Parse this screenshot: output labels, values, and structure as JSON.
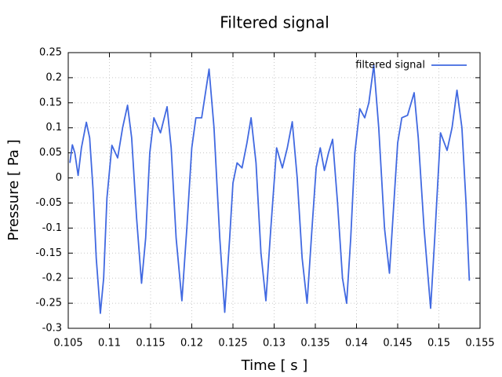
{
  "chart_data": {
    "type": "line",
    "title": "Filtered signal",
    "xlabel": "Time [ s ]",
    "ylabel": "Pressure [ Pa ]",
    "x": [
      0.1052,
      0.1055,
      0.1058,
      0.1062,
      0.1066,
      0.1072,
      0.1076,
      0.108,
      0.1084,
      0.1089,
      0.1093,
      0.1097,
      0.1103,
      0.111,
      0.1116,
      0.1122,
      0.1127,
      0.1133,
      0.1139,
      0.1144,
      0.1149,
      0.1154,
      0.1162,
      0.117,
      0.1175,
      0.1181,
      0.1188,
      0.1194,
      0.12,
      0.1205,
      0.1212,
      0.1221,
      0.1227,
      0.1234,
      0.124,
      0.1246,
      0.125,
      0.1255,
      0.1261,
      0.1267,
      0.1272,
      0.1278,
      0.1284,
      0.129,
      0.1296,
      0.1303,
      0.131,
      0.1316,
      0.1322,
      0.1328,
      0.1334,
      0.134,
      0.1346,
      0.1351,
      0.1356,
      0.1361,
      0.1366,
      0.1371,
      0.1377,
      0.1383,
      0.1388,
      0.1393,
      0.1398,
      0.1404,
      0.141,
      0.1415,
      0.1421,
      0.1427,
      0.1434,
      0.144,
      0.1445,
      0.145,
      0.1455,
      0.1462,
      0.147,
      0.1475,
      0.1482,
      0.149,
      0.1495,
      0.1502,
      0.151,
      0.1516,
      0.1522,
      0.1528,
      0.1533,
      0.1537
    ],
    "series": [
      {
        "name": "filtered signal",
        "color": "#4169e1",
        "values": [
          0.03,
          0.066,
          0.05,
          0.005,
          0.06,
          0.111,
          0.08,
          -0.02,
          -0.16,
          -0.27,
          -0.2,
          -0.04,
          0.065,
          0.04,
          0.1,
          0.145,
          0.08,
          -0.08,
          -0.21,
          -0.12,
          0.05,
          0.12,
          0.09,
          0.142,
          0.06,
          -0.12,
          -0.245,
          -0.1,
          0.06,
          0.12,
          0.12,
          0.217,
          0.1,
          -0.12,
          -0.268,
          -0.12,
          -0.01,
          0.03,
          0.02,
          0.07,
          0.12,
          0.03,
          -0.15,
          -0.245,
          -0.1,
          0.06,
          0.02,
          0.06,
          0.112,
          0.0,
          -0.16,
          -0.25,
          -0.1,
          0.02,
          0.06,
          0.015,
          0.05,
          0.077,
          -0.05,
          -0.2,
          -0.25,
          -0.12,
          0.05,
          0.138,
          0.12,
          0.15,
          0.225,
          0.1,
          -0.1,
          -0.19,
          -0.06,
          0.07,
          0.12,
          0.125,
          0.17,
          0.08,
          -0.1,
          -0.26,
          -0.12,
          0.09,
          0.055,
          0.1,
          0.175,
          0.1,
          -0.05,
          -0.205
        ]
      }
    ],
    "xlim": [
      0.105,
      0.155
    ],
    "xticks": [
      0.105,
      0.11,
      0.115,
      0.12,
      0.125,
      0.13,
      0.135,
      0.14,
      0.145,
      0.15,
      0.155
    ],
    "ylim": [
      -0.3,
      0.25
    ],
    "yticks": [
      -0.3,
      -0.25,
      -0.2,
      -0.15,
      -0.1,
      -0.05,
      0,
      0.05,
      0.1,
      0.15,
      0.2,
      0.25
    ],
    "grid": true,
    "legend": "upper right"
  }
}
